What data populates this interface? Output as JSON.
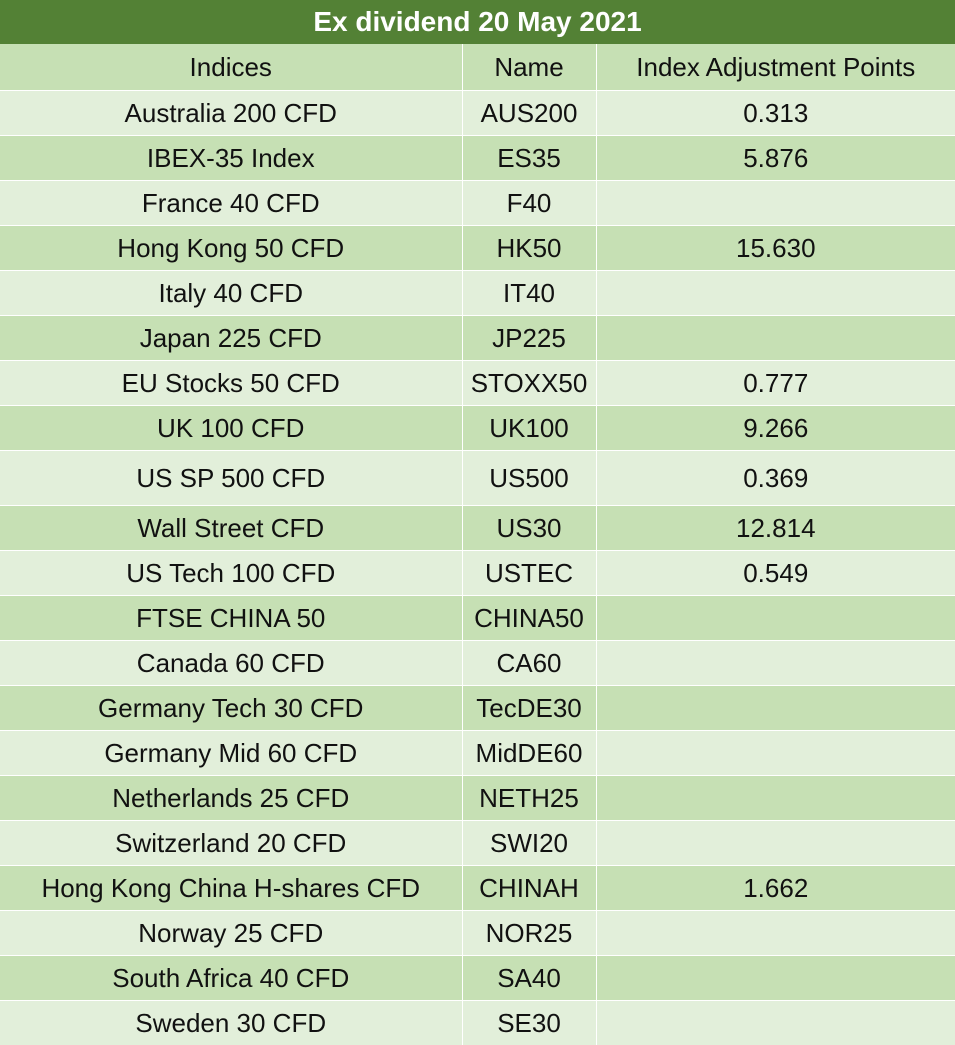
{
  "title": "Ex dividend 20 May 2021",
  "headers": {
    "indices": "Indices",
    "name": "Name",
    "adjustment": "Index Adjustment Points"
  },
  "rows": [
    {
      "index": "Australia 200 CFD",
      "name": "AUS200",
      "points": "0.313"
    },
    {
      "index": "IBEX-35 Index",
      "name": "ES35",
      "points": "5.876"
    },
    {
      "index": "France 40 CFD",
      "name": "F40",
      "points": ""
    },
    {
      "index": "Hong Kong 50 CFD",
      "name": "HK50",
      "points": "15.630"
    },
    {
      "index": "Italy 40 CFD",
      "name": "IT40",
      "points": ""
    },
    {
      "index": "Japan 225 CFD",
      "name": "JP225",
      "points": ""
    },
    {
      "index": "EU Stocks 50 CFD",
      "name": "STOXX50",
      "points": "0.777"
    },
    {
      "index": "UK 100 CFD",
      "name": "UK100",
      "points": "9.266"
    },
    {
      "index": "US SP 500 CFD",
      "name": "US500",
      "points": "0.369"
    },
    {
      "index": "Wall Street CFD",
      "name": "US30",
      "points": "12.814"
    },
    {
      "index": "US Tech 100 CFD",
      "name": "USTEC",
      "points": "0.549"
    },
    {
      "index": "FTSE CHINA 50",
      "name": "CHINA50",
      "points": ""
    },
    {
      "index": "Canada 60 CFD",
      "name": "CA60",
      "points": ""
    },
    {
      "index": "Germany Tech 30 CFD",
      "name": "TecDE30",
      "points": ""
    },
    {
      "index": "Germany Mid 60 CFD",
      "name": "MidDE60",
      "points": ""
    },
    {
      "index": "Netherlands 25 CFD",
      "name": "NETH25",
      "points": ""
    },
    {
      "index": "Switzerland 20 CFD",
      "name": "SWI20",
      "points": ""
    },
    {
      "index": "Hong Kong China H-shares CFD",
      "name": "CHINAH",
      "points": "1.662"
    },
    {
      "index": "Norway 25 CFD",
      "name": "NOR25",
      "points": ""
    },
    {
      "index": "South Africa 40 CFD",
      "name": "SA40",
      "points": ""
    },
    {
      "index": "Sweden 30 CFD",
      "name": "SE30",
      "points": ""
    }
  ],
  "colors": {
    "title_bg": "#538135",
    "header_bg": "#c6e0b4",
    "row_light": "#e2efda",
    "row_dark": "#c6e0b4"
  }
}
